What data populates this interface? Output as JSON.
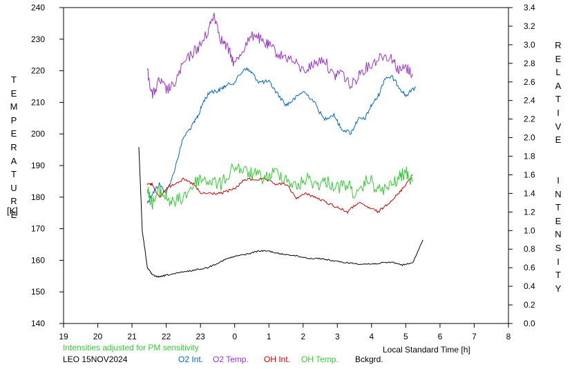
{
  "chart_data": {
    "type": "line",
    "xlabel": "Local Standard Time [h]",
    "xlim": [
      19,
      8
    ],
    "x_ticks": [
      "19",
      "20",
      "21",
      "22",
      "23",
      "0",
      "1",
      "2",
      "3",
      "4",
      "5",
      "6",
      "7",
      "8"
    ],
    "y_left": {
      "label": "TEMPERATURE",
      "unit": "[K]",
      "ylim": [
        140,
        240
      ],
      "ticks": [
        "140",
        "150",
        "160",
        "170",
        "180",
        "190",
        "200",
        "210",
        "220",
        "230",
        "240"
      ]
    },
    "y_right": {
      "label": "RELATIVE  INTENSITY",
      "ylim": [
        0.0,
        3.4
      ],
      "ticks": [
        "0.0",
        "0.2",
        "0.4",
        "0.6",
        "0.8",
        "1.0",
        "1.2",
        "1.4",
        "1.6",
        "1.8",
        "2.0",
        "2.2",
        "2.4",
        "2.6",
        "2.8",
        "3.0",
        "3.2",
        "3.4"
      ]
    },
    "note": "Intensities adjusted for PM sensitivity",
    "station": "LEO 15NOV2024",
    "legend_position": "bottom",
    "series": [
      {
        "name": "O2 Int.",
        "axis": "right",
        "color": "#0066cc",
        "x": [
          21.45,
          21.6,
          21.8,
          22.0,
          22.2,
          22.5,
          22.8,
          22.95,
          23.1,
          23.3,
          23.5,
          23.7,
          24.0,
          24.3,
          24.5,
          24.7,
          25.0,
          25.2,
          25.5,
          25.7,
          26.0,
          26.3,
          26.6,
          26.9,
          27.1,
          27.4,
          27.6,
          27.8,
          28.0,
          28.2,
          28.4,
          28.6,
          28.8,
          29.0,
          29.3
        ],
        "y": [
          1.3,
          1.4,
          1.5,
          1.4,
          1.6,
          2.0,
          2.15,
          2.25,
          2.4,
          2.5,
          2.5,
          2.55,
          2.6,
          2.75,
          2.7,
          2.6,
          2.6,
          2.5,
          2.35,
          2.4,
          2.5,
          2.4,
          2.2,
          2.25,
          2.1,
          2.05,
          2.2,
          2.2,
          2.35,
          2.45,
          2.65,
          2.65,
          2.55,
          2.45,
          2.55
        ]
      },
      {
        "name": "O2 Temp.",
        "axis": "left",
        "color": "#9933cc",
        "x": [
          21.45,
          21.6,
          21.8,
          22.0,
          22.2,
          22.5,
          22.8,
          23.0,
          23.2,
          23.4,
          23.6,
          23.8,
          24.0,
          24.3,
          24.6,
          24.8,
          25.0,
          25.3,
          25.6,
          26.0,
          26.3,
          26.6,
          26.9,
          27.1,
          27.4,
          27.7,
          28.0,
          28.3,
          28.6,
          28.8,
          29.0,
          29.2
        ],
        "y": [
          220,
          212,
          217,
          214,
          215,
          222,
          226,
          228,
          232,
          238,
          230,
          227,
          222,
          228,
          232,
          229,
          228,
          225,
          224,
          220,
          222,
          224,
          218,
          220,
          215,
          220,
          222,
          225,
          224,
          220,
          221,
          219
        ]
      },
      {
        "name": "OH Int.",
        "axis": "right",
        "color": "#cc0000",
        "x": [
          21.45,
          21.6,
          21.8,
          22.0,
          22.2,
          22.5,
          22.8,
          23.0,
          23.3,
          23.6,
          24.0,
          24.3,
          24.6,
          24.9,
          25.2,
          25.5,
          25.8,
          26.1,
          26.4,
          26.7,
          27.0,
          27.3,
          27.6,
          27.9,
          28.2,
          28.5,
          28.8,
          29.0,
          29.2
        ],
        "y": [
          1.5,
          1.5,
          1.35,
          1.45,
          1.5,
          1.55,
          1.5,
          1.4,
          1.4,
          1.4,
          1.45,
          1.55,
          1.55,
          1.55,
          1.5,
          1.5,
          1.35,
          1.4,
          1.35,
          1.3,
          1.25,
          1.2,
          1.3,
          1.25,
          1.2,
          1.3,
          1.4,
          1.5,
          1.6
        ]
      },
      {
        "name": "OH Temp.",
        "axis": "left",
        "color": "#33cc33",
        "x": [
          21.45,
          21.6,
          21.8,
          22.0,
          22.2,
          22.5,
          22.8,
          23.0,
          23.3,
          23.6,
          24.0,
          24.3,
          24.6,
          24.9,
          25.2,
          25.5,
          25.8,
          26.1,
          26.4,
          26.7,
          27.0,
          27.3,
          27.6,
          27.9,
          28.2,
          28.5,
          28.8,
          29.0,
          29.2
        ],
        "y": [
          182,
          178,
          182,
          180,
          178,
          180,
          184,
          186,
          185,
          184,
          190,
          188,
          187,
          186,
          188,
          186,
          183,
          186,
          184,
          185,
          183,
          184,
          180,
          186,
          182,
          183,
          186,
          188,
          185
        ]
      },
      {
        "name": "Bckgrd.",
        "axis": "right",
        "color": "#000000",
        "x": [
          21.2,
          21.3,
          21.45,
          21.6,
          21.8,
          22.0,
          22.3,
          22.6,
          22.9,
          23.2,
          23.5,
          23.8,
          24.1,
          24.4,
          24.7,
          25.0,
          25.3,
          25.6,
          25.9,
          26.2,
          26.5,
          26.8,
          27.1,
          27.4,
          27.7,
          28.0,
          28.3,
          28.6,
          28.9,
          29.2,
          29.5
        ],
        "y": [
          1.9,
          1.0,
          0.6,
          0.52,
          0.5,
          0.52,
          0.54,
          0.56,
          0.58,
          0.6,
          0.65,
          0.7,
          0.73,
          0.75,
          0.78,
          0.78,
          0.75,
          0.74,
          0.72,
          0.7,
          0.7,
          0.68,
          0.66,
          0.65,
          0.64,
          0.64,
          0.65,
          0.66,
          0.63,
          0.65,
          0.9
        ]
      }
    ]
  }
}
